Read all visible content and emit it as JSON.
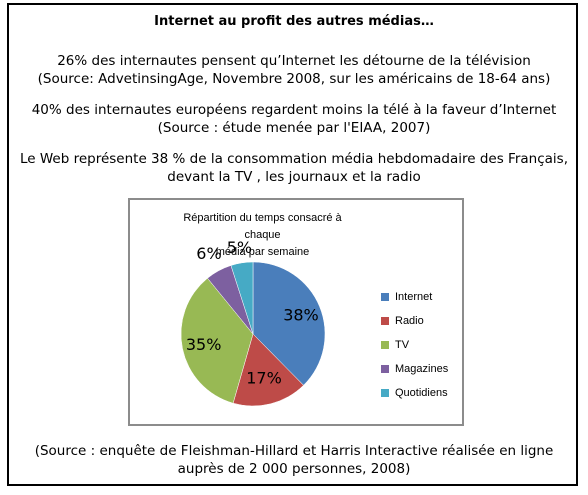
{
  "header": {
    "title": "Internet au profit des autres médias…"
  },
  "paragraphs": [
    {
      "line1": "26% des internautes pensent qu’Internet les détourne de la télévision",
      "line2": "(Source: AdvetinsingAge, Novembre 2008, sur les américains de 18-64 ans)"
    },
    {
      "line1": "40% des internautes européens regardent moins la télé à la faveur d’Internet",
      "line2": "(Source : étude menée par l'EIAA, 2007)"
    },
    {
      "line1": "Le Web représente 38 % de la consommation média hebdomadaire des Français,",
      "line2": "devant la TV , les journaux et la radio"
    }
  ],
  "chart_data": {
    "type": "pie",
    "title_line1": "Répartition du temps consacré à chaque",
    "title_line2": "média par semaine",
    "categories": [
      "Internet",
      "Radio",
      "TV",
      "Magazines",
      "Quotidiens"
    ],
    "values": [
      38,
      17,
      35,
      6,
      5
    ],
    "labels": [
      "38%",
      "17%",
      "35%",
      "6%",
      "5%"
    ],
    "colors": [
      "#4a7ebb",
      "#be4b48",
      "#98b954",
      "#7d60a0",
      "#46aac5"
    ],
    "legend_position": "right"
  },
  "footer": {
    "line1": "(Source : enquête de Fleishman-Hillard et Harris Interactive réalisée en ligne",
    "line2": "auprès de 2 000 personnes, 2008)"
  }
}
